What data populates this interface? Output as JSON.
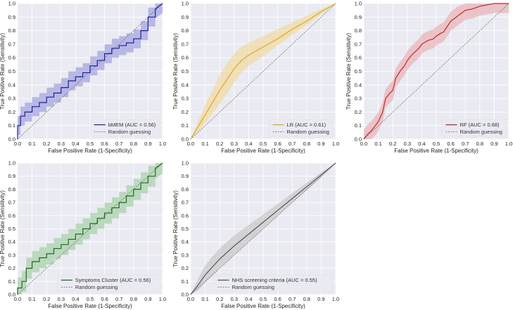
{
  "chart_data": [
    {
      "type": "line",
      "id": "bmem",
      "xlabel": "False Positive Rate (1-Specificity)",
      "ylabel": "True Positive Rate (Sensitivity)",
      "xlim": [
        0,
        1
      ],
      "ylim": [
        0,
        1
      ],
      "xticks": [
        "0.0",
        "0.1",
        "0.2",
        "0.3",
        "0.4",
        "0.5",
        "0.6",
        "0.7",
        "0.8",
        "0.9",
        "1.0"
      ],
      "yticks": [
        "0.0",
        "0.1",
        "0.2",
        "0.3",
        "0.4",
        "0.5",
        "0.6",
        "0.7",
        "0.8",
        "0.9",
        "1.0"
      ],
      "legend_position": "bottom-right",
      "color": "#1f1fa0",
      "band_color": "#8c8cd8",
      "series": [
        {
          "name": "bMEM (AUC = 0.56)",
          "x": [
            0,
            0,
            0.02,
            0.02,
            0.05,
            0.05,
            0.1,
            0.1,
            0.15,
            0.15,
            0.2,
            0.2,
            0.25,
            0.25,
            0.3,
            0.3,
            0.35,
            0.35,
            0.4,
            0.4,
            0.45,
            0.45,
            0.5,
            0.5,
            0.55,
            0.55,
            0.6,
            0.6,
            0.65,
            0.65,
            0.7,
            0.7,
            0.75,
            0.75,
            0.8,
            0.8,
            0.85,
            0.85,
            0.9,
            0.9,
            0.95,
            0.95,
            1.0
          ],
          "y": [
            0,
            0.1,
            0.1,
            0.17,
            0.17,
            0.2,
            0.2,
            0.24,
            0.24,
            0.27,
            0.27,
            0.31,
            0.31,
            0.34,
            0.34,
            0.38,
            0.38,
            0.43,
            0.43,
            0.46,
            0.46,
            0.49,
            0.49,
            0.54,
            0.54,
            0.58,
            0.58,
            0.63,
            0.63,
            0.67,
            0.67,
            0.69,
            0.69,
            0.71,
            0.71,
            0.74,
            0.74,
            0.8,
            0.8,
            0.9,
            0.9,
            0.96,
            1.0
          ],
          "band": 0.07
        },
        {
          "name": "Random guessing",
          "x": [
            0,
            1
          ],
          "y": [
            0,
            1
          ],
          "style": "dashed"
        }
      ]
    },
    {
      "type": "line",
      "id": "lr",
      "xlabel": "False Positive Rate (1-Specificity)",
      "ylabel": "True Positive Rate (Sensitivity)",
      "xlim": [
        0,
        1
      ],
      "ylim": [
        0,
        1
      ],
      "xticks": [
        "0.0",
        "0.1",
        "0.2",
        "0.3",
        "0.4",
        "0.5",
        "0.6",
        "0.7",
        "0.8",
        "0.9",
        "1.0"
      ],
      "yticks": [
        "0.0",
        "0.1",
        "0.2",
        "0.3",
        "0.4",
        "0.5",
        "0.6",
        "0.7",
        "0.8",
        "0.9",
        "1.0"
      ],
      "legend_position": "bottom-right",
      "color": "#e0a91c",
      "band_color": "#f1d58a",
      "series": [
        {
          "name": "LR (AUC = 0.61)",
          "x": [
            0,
            0.05,
            0.1,
            0.15,
            0.2,
            0.25,
            0.3,
            0.35,
            0.4,
            0.5,
            0.6,
            0.7,
            0.8,
            0.9,
            1.0
          ],
          "y": [
            0,
            0.09,
            0.18,
            0.27,
            0.36,
            0.44,
            0.52,
            0.58,
            0.62,
            0.68,
            0.74,
            0.81,
            0.87,
            0.94,
            1.0
          ],
          "band_lower": [
            0,
            0.05,
            0.12,
            0.19,
            0.26,
            0.33,
            0.42,
            0.49,
            0.54,
            0.61,
            0.69,
            0.77,
            0.84,
            0.92,
            1.0
          ],
          "band_upper": [
            0,
            0.13,
            0.25,
            0.36,
            0.47,
            0.56,
            0.63,
            0.68,
            0.71,
            0.76,
            0.81,
            0.86,
            0.91,
            0.96,
            1.0
          ]
        },
        {
          "name": "Random guessing",
          "x": [
            0,
            1
          ],
          "y": [
            0,
            1
          ],
          "style": "dashed"
        }
      ]
    },
    {
      "type": "line",
      "id": "rf",
      "xlabel": "False Positive Rate (1-Specificity)",
      "ylabel": "True Positive Rate (Sensitivity)",
      "xlim": [
        0,
        1
      ],
      "ylim": [
        0,
        1
      ],
      "xticks": [
        "0.0",
        "0.1",
        "0.2",
        "0.3",
        "0.4",
        "0.5",
        "0.6",
        "0.7",
        "0.8",
        "0.9",
        "1.0"
      ],
      "yticks": [
        "0.0",
        "0.1",
        "0.2",
        "0.3",
        "0.4",
        "0.5",
        "0.6",
        "0.7",
        "0.8",
        "0.9",
        "1.0"
      ],
      "legend_position": "bottom-right",
      "color": "#c0282d",
      "band_color": "#e8a2a5",
      "series": [
        {
          "name": "RF (AUC = 0.68)",
          "x": [
            0,
            0.02,
            0.05,
            0.08,
            0.1,
            0.13,
            0.15,
            0.18,
            0.2,
            0.22,
            0.25,
            0.28,
            0.3,
            0.33,
            0.35,
            0.38,
            0.4,
            0.43,
            0.45,
            0.48,
            0.5,
            0.53,
            0.55,
            0.6,
            0.65,
            0.7,
            0.75,
            0.8,
            0.85,
            0.9,
            0.95,
            1.0
          ],
          "y": [
            0,
            0.03,
            0.06,
            0.1,
            0.13,
            0.2,
            0.3,
            0.34,
            0.36,
            0.45,
            0.5,
            0.54,
            0.58,
            0.62,
            0.64,
            0.67,
            0.7,
            0.72,
            0.73,
            0.74,
            0.76,
            0.78,
            0.79,
            0.87,
            0.91,
            0.95,
            0.96,
            0.98,
            0.99,
            1.0,
            1.0,
            1.0
          ],
          "band": 0.07
        },
        {
          "name": "Random guessing",
          "x": [
            0,
            1
          ],
          "y": [
            0,
            1
          ],
          "style": "dashed"
        }
      ]
    },
    {
      "type": "line",
      "id": "symptoms",
      "xlabel": "False Positive Rate (1-Specificity)",
      "ylabel": "True Positive Rate (Sensitivity)",
      "xlim": [
        0,
        1
      ],
      "ylim": [
        0,
        1
      ],
      "xticks": [
        "0.0",
        "0.1",
        "0.2",
        "0.3",
        "0.4",
        "0.5",
        "0.6",
        "0.7",
        "0.8",
        "0.9",
        "1.0"
      ],
      "yticks": [
        "0.0",
        "0.1",
        "0.2",
        "0.3",
        "0.4",
        "0.5",
        "0.6",
        "0.7",
        "0.8",
        "0.9",
        "1.0"
      ],
      "legend_position": "bottom-right",
      "color": "#1e6b1e",
      "band_color": "#92c892",
      "series": [
        {
          "name": "Symptoms Cluster (AUC = 0.56)",
          "x": [
            0,
            0,
            0.03,
            0.03,
            0.06,
            0.06,
            0.1,
            0.1,
            0.15,
            0.15,
            0.2,
            0.2,
            0.25,
            0.25,
            0.3,
            0.3,
            0.35,
            0.35,
            0.4,
            0.4,
            0.45,
            0.45,
            0.5,
            0.5,
            0.55,
            0.55,
            0.6,
            0.6,
            0.65,
            0.65,
            0.7,
            0.7,
            0.75,
            0.75,
            0.8,
            0.8,
            0.85,
            0.85,
            0.9,
            0.9,
            0.95,
            0.95,
            1.0
          ],
          "y": [
            0,
            0.05,
            0.05,
            0.1,
            0.1,
            0.2,
            0.2,
            0.25,
            0.25,
            0.28,
            0.28,
            0.31,
            0.31,
            0.35,
            0.35,
            0.38,
            0.38,
            0.42,
            0.42,
            0.46,
            0.46,
            0.5,
            0.5,
            0.54,
            0.54,
            0.58,
            0.58,
            0.62,
            0.62,
            0.66,
            0.66,
            0.7,
            0.7,
            0.75,
            0.75,
            0.8,
            0.8,
            0.85,
            0.85,
            0.9,
            0.9,
            0.96,
            1.0
          ],
          "band": 0.08
        },
        {
          "name": "Random guessing",
          "x": [
            0,
            1
          ],
          "y": [
            0,
            1
          ],
          "style": "dashed"
        }
      ]
    },
    {
      "type": "line",
      "id": "nhs",
      "xlabel": "False Positive Rate (1-Specificity)",
      "ylabel": "True Positive Rate (Sensitivity)",
      "xlim": [
        0,
        1
      ],
      "ylim": [
        0,
        1
      ],
      "xticks": [
        "0.0",
        "0.1",
        "0.2",
        "0.3",
        "0.4",
        "0.5",
        "0.6",
        "0.7",
        "0.8",
        "0.9",
        "1.0"
      ],
      "yticks": [
        "0.0",
        "0.1",
        "0.2",
        "0.3",
        "0.4",
        "0.5",
        "0.6",
        "0.7",
        "0.8",
        "0.9",
        "1.0"
      ],
      "legend_position": "bottom-right",
      "color": "#555555",
      "band_color": "#bdbdbd",
      "series": [
        {
          "name": "NHS screening criteria (AUC = 0.55)",
          "x": [
            0,
            0.05,
            0.1,
            0.15,
            0.2,
            0.3,
            0.4,
            0.5,
            0.6,
            0.7,
            0.8,
            0.9,
            1.0
          ],
          "y": [
            0,
            0.07,
            0.15,
            0.21,
            0.27,
            0.37,
            0.46,
            0.55,
            0.64,
            0.73,
            0.82,
            0.91,
            1.0
          ],
          "band_lower": [
            0,
            0.03,
            0.09,
            0.14,
            0.2,
            0.3,
            0.4,
            0.5,
            0.6,
            0.7,
            0.79,
            0.89,
            1.0
          ],
          "band_upper": [
            0,
            0.12,
            0.22,
            0.29,
            0.35,
            0.45,
            0.53,
            0.61,
            0.69,
            0.77,
            0.85,
            0.93,
            1.0
          ]
        },
        {
          "name": "Random guessing",
          "x": [
            0,
            1
          ],
          "y": [
            0,
            1
          ],
          "style": "dashed"
        }
      ]
    }
  ]
}
